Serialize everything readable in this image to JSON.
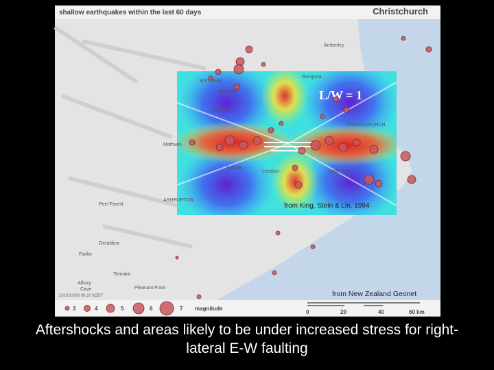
{
  "header": {
    "title": "shallow earthquakes within the last 60 days",
    "region": "Christchurch"
  },
  "places": [
    "Amberley",
    "Rangiora",
    "Springfield",
    "Sheffield",
    "Coalgate",
    "CHRISTCHURCH",
    "Methven",
    "Rakaia",
    "Leeston",
    "Little River",
    "ASHBURTON",
    "Peel Forest",
    "Geraldine",
    "Fairlie",
    "Temuka",
    "Albury",
    "Cave",
    "Pleasant Point"
  ],
  "overlay": {
    "label": "L/W = 1",
    "credit": "from King, Stein & Lin, 1994"
  },
  "credit": "from New Zealand Geonet",
  "timestamp": "2010/10/06 09:20 NZDT",
  "legend": {
    "magnitudes": [
      "3",
      "4",
      "5",
      "6",
      "7"
    ],
    "label": "magnitude"
  },
  "scale": {
    "ticks": [
      "0",
      "20",
      "40",
      "60 km"
    ]
  },
  "caption": "Aftershocks and areas likely to be under increased stress for right-lateral E-W faulting"
}
